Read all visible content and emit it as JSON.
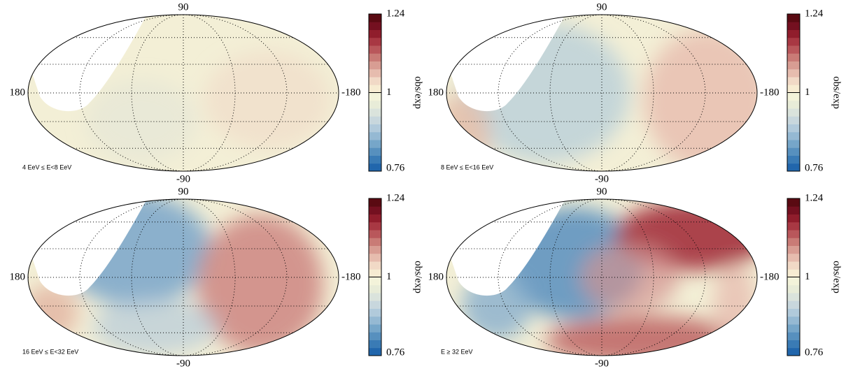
{
  "chart_data": [
    {
      "type": "skymap",
      "label": "4 EeV ≤ E<8 EeV",
      "xlim": [
        180,
        -180
      ],
      "xticks": [
        180,
        -180
      ],
      "ylim": [
        -90,
        90
      ],
      "yticks": [
        90,
        -90
      ],
      "colorbar": {
        "label": "obs/exp",
        "lim": [
          0.76,
          1.24
        ],
        "ticks": [
          0.76,
          1,
          1.24
        ]
      }
    },
    {
      "type": "skymap",
      "label": "8 EeV ≤ E<16 EeV",
      "xlim": [
        180,
        -180
      ],
      "xticks": [
        180,
        -180
      ],
      "ylim": [
        -90,
        90
      ],
      "yticks": [
        90,
        -90
      ],
      "colorbar": {
        "label": "obs/exp",
        "lim": [
          0.76,
          1.24
        ],
        "ticks": [
          0.76,
          1,
          1.24
        ]
      }
    },
    {
      "type": "skymap",
      "label": "16 EeV ≤ E<32 EeV",
      "xlim": [
        180,
        -180
      ],
      "xticks": [
        180,
        -180
      ],
      "ylim": [
        -90,
        90
      ],
      "yticks": [
        90,
        -90
      ],
      "colorbar": {
        "label": "obs/exp",
        "lim": [
          0.76,
          1.24
        ],
        "ticks": [
          0.76,
          1,
          1.24
        ]
      }
    },
    {
      "type": "skymap",
      "label": "E ≥ 32 EeV",
      "xlim": [
        180,
        -180
      ],
      "xticks": [
        180,
        -180
      ],
      "ylim": [
        -90,
        90
      ],
      "yticks": [
        90,
        -90
      ],
      "colorbar": {
        "label": "obs/exp",
        "lim": [
          0.76,
          1.24
        ],
        "ticks": [
          0.76,
          1,
          1.24
        ]
      }
    }
  ]
}
